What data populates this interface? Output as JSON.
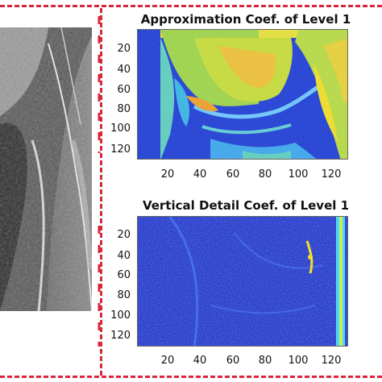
{
  "panels": {
    "approx": {
      "title": "Approximation Coef. of Level 1",
      "y_ticks": [
        "20",
        "40",
        "60",
        "80",
        "100",
        "120"
      ],
      "x_ticks": [
        "20",
        "40",
        "60",
        "80",
        "100",
        "120"
      ]
    },
    "vertical": {
      "title": "Vertical Detail Coef. of Level 1",
      "y_ticks": [
        "20",
        "40",
        "60",
        "80",
        "100",
        "120"
      ],
      "x_ticks": [
        "20",
        "40",
        "60",
        "80",
        "100",
        "120"
      ]
    }
  },
  "colors": {
    "dash": "#d9263a",
    "colormap_low": "#1f3fd8",
    "colormap_high": "#f2e028"
  }
}
